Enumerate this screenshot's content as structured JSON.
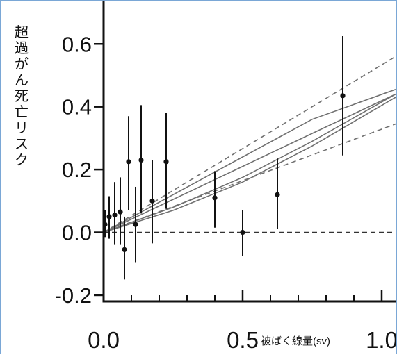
{
  "chart_data": {
    "type": "scatter",
    "title": "",
    "xlabel": "被ばく線量(sv)",
    "ylabel": "超過がん死亡リスク",
    "xlim": [
      0.0,
      1.05
    ],
    "ylim": [
      -0.22,
      0.72
    ],
    "x_ticks": [
      0.0,
      0.5,
      1.0
    ],
    "x_tick_labels": [
      "0.0",
      "0.5",
      "1.0"
    ],
    "x_minor_ticks": [
      0.1,
      0.2,
      0.3,
      0.4,
      0.6,
      0.7,
      0.8,
      0.9
    ],
    "y_ticks": [
      -0.2,
      0.0,
      0.2,
      0.4,
      0.6
    ],
    "y_tick_labels": [
      "-0.2",
      "0.0",
      "0.2",
      "0.4",
      "0.6"
    ],
    "grid": false,
    "colors": {
      "points": "#111111",
      "fit": "#707070",
      "reference": "#333333"
    },
    "points": [
      {
        "x": 0.005,
        "y": 0.025,
        "ylow": -0.015,
        "yhigh": 0.07
      },
      {
        "x": 0.02,
        "y": 0.05,
        "ylow": -0.02,
        "yhigh": 0.115
      },
      {
        "x": 0.04,
        "y": 0.055,
        "ylow": -0.04,
        "yhigh": 0.16
      },
      {
        "x": 0.06,
        "y": 0.065,
        "ylow": -0.04,
        "yhigh": 0.175
      },
      {
        "x": 0.075,
        "y": -0.055,
        "ylow": -0.15,
        "yhigh": 0.05
      },
      {
        "x": 0.09,
        "y": 0.225,
        "ylow": 0.07,
        "yhigh": 0.37
      },
      {
        "x": 0.115,
        "y": 0.025,
        "ylow": -0.095,
        "yhigh": 0.145
      },
      {
        "x": 0.135,
        "y": 0.23,
        "ylow": 0.06,
        "yhigh": 0.405
      },
      {
        "x": 0.175,
        "y": 0.1,
        "ylow": -0.035,
        "yhigh": 0.23
      },
      {
        "x": 0.225,
        "y": 0.225,
        "ylow": 0.075,
        "yhigh": 0.38
      },
      {
        "x": 0.4,
        "y": 0.11,
        "ylow": 0.015,
        "yhigh": 0.195
      },
      {
        "x": 0.5,
        "y": 0.0,
        "ylow": -0.075,
        "yhigh": 0.07
      },
      {
        "x": 0.625,
        "y": 0.12,
        "ylow": 0.01,
        "yhigh": 0.235
      },
      {
        "x": 0.86,
        "y": 0.435,
        "ylow": 0.245,
        "yhigh": 0.625
      }
    ],
    "fit_lines": [
      {
        "style": "solid",
        "points": [
          [
            0.0,
            0.0
          ],
          [
            0.25,
            0.105
          ],
          [
            0.5,
            0.21
          ],
          [
            0.75,
            0.315
          ],
          [
            1.05,
            0.44
          ]
        ]
      },
      {
        "style": "solid",
        "points": [
          [
            0.0,
            0.0
          ],
          [
            0.25,
            0.12
          ],
          [
            0.5,
            0.24
          ],
          [
            0.75,
            0.36
          ],
          [
            1.05,
            0.455
          ]
        ]
      },
      {
        "style": "solid",
        "points": [
          [
            0.0,
            0.0
          ],
          [
            0.25,
            0.08
          ],
          [
            0.5,
            0.175
          ],
          [
            0.75,
            0.29
          ],
          [
            1.05,
            0.44
          ]
        ]
      },
      {
        "style": "solid",
        "points": [
          [
            0.0,
            0.0
          ],
          [
            0.25,
            0.07
          ],
          [
            0.5,
            0.16
          ],
          [
            0.75,
            0.275
          ],
          [
            1.05,
            0.43
          ]
        ]
      },
      {
        "style": "dashed",
        "points": [
          [
            0.0,
            0.0
          ],
          [
            1.05,
            0.56
          ]
        ]
      },
      {
        "style": "dashed",
        "points": [
          [
            0.0,
            0.0
          ],
          [
            1.05,
            0.345
          ]
        ]
      }
    ],
    "reference_line": {
      "style": "dashed",
      "y": 0.0
    }
  }
}
